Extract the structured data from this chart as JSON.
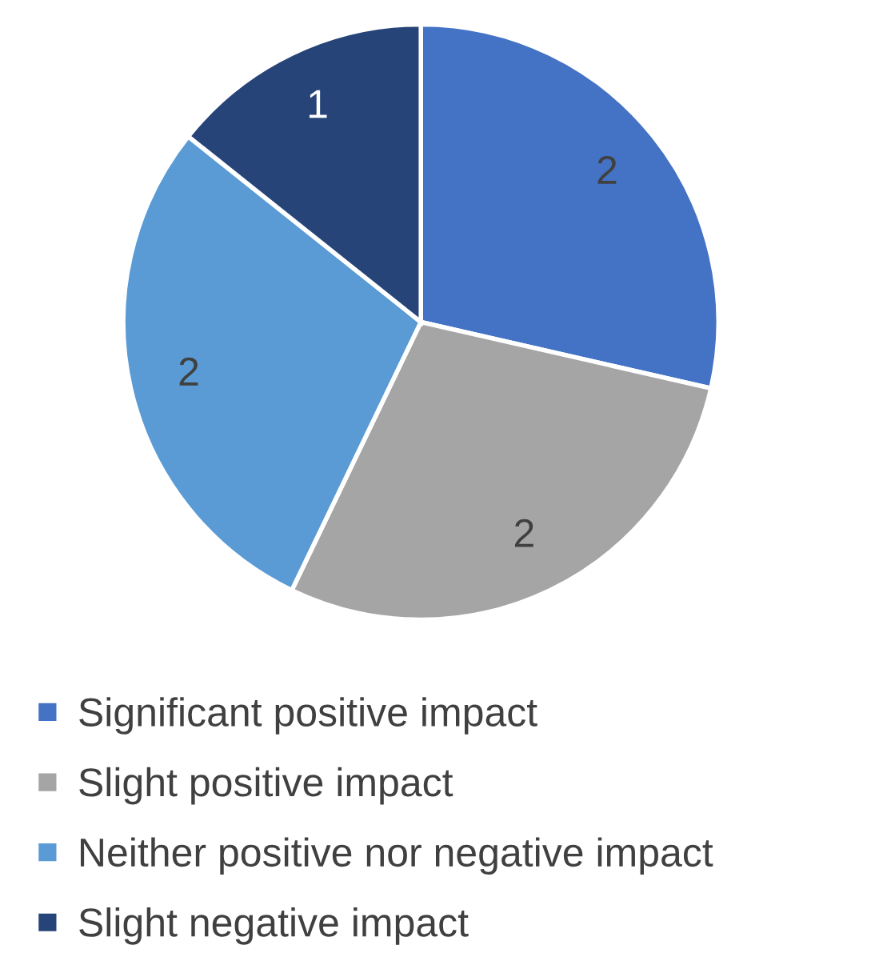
{
  "chart_data": {
    "type": "pie",
    "categories": [
      "Significant positive impact",
      "Slight positive impact",
      "Neither positive nor negative impact",
      "Slight negative impact"
    ],
    "values": [
      2,
      2,
      2,
      1
    ],
    "colors": [
      "#4472c4",
      "#a5a5a5",
      "#5b9bd5",
      "#264478"
    ],
    "data_labels": true,
    "legend": "bottom"
  }
}
